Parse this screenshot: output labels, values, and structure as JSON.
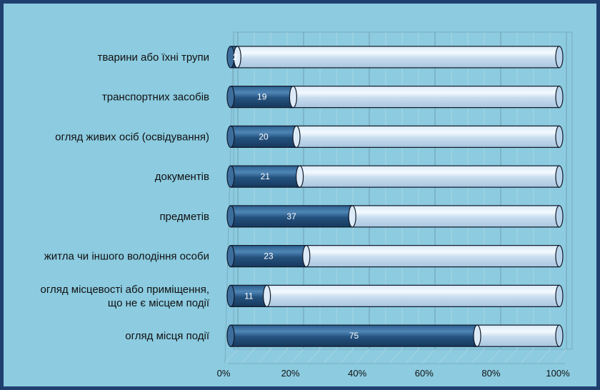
{
  "chart_data": {
    "type": "bar",
    "orientation": "horizontal",
    "stacked_percent": true,
    "categories": [
      "тварини або їхні трупи",
      "транспортних засобів",
      "огляд живих осіб (освідування)",
      "документів",
      "предметів",
      "житла чи іншого володіння особи",
      "огляд місцевості або приміщення, що не є місцем події",
      "огляд місця події"
    ],
    "category_lines": [
      [
        "тварини або їхні трупи"
      ],
      [
        "транспортних засобів"
      ],
      [
        "огляд живих осіб (освідування)"
      ],
      [
        "документів"
      ],
      [
        "предметів"
      ],
      [
        "житла чи іншого володіння особи"
      ],
      [
        "огляд місцевості або приміщення,",
        "що не є місцем події"
      ],
      [
        "огляд місця події"
      ]
    ],
    "values": [
      2,
      19,
      20,
      21,
      37,
      23,
      11,
      75
    ],
    "value_labels": [
      "2",
      "19",
      "20",
      "21",
      "37",
      "23",
      "11",
      "75"
    ],
    "xlim": [
      0,
      100
    ],
    "x_ticks": [
      "0%",
      "20%",
      "40%",
      "60%",
      "80%",
      "100%"
    ],
    "grid": true,
    "legend": "none",
    "colors": {
      "filled": "#1f4e78",
      "filled_light": "#4a7eac",
      "empty": "#c9dff0",
      "empty_light": "#eef6fc",
      "outline": "#101828"
    }
  }
}
